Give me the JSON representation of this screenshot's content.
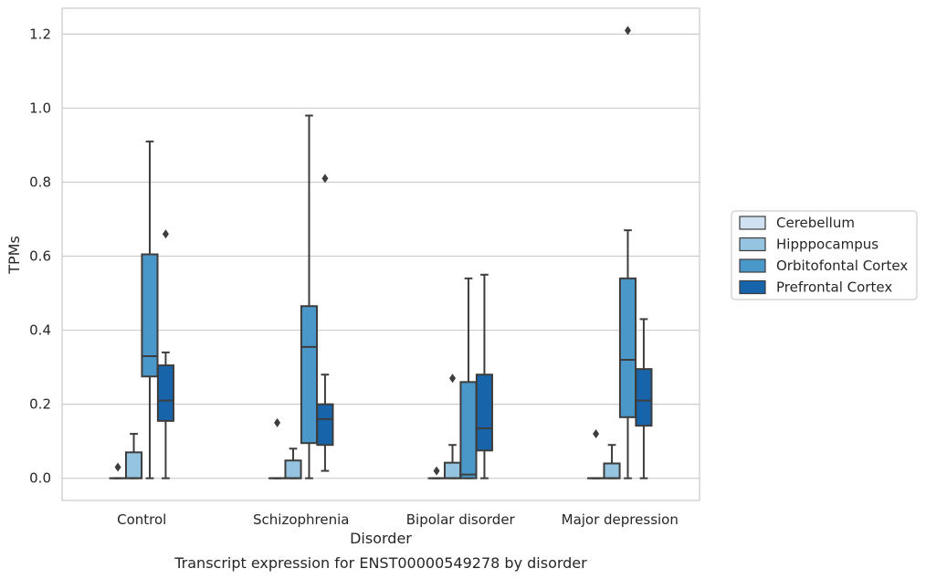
{
  "chart_data": {
    "type": "box",
    "xlabel": "Disorder",
    "ylabel": "TPMs",
    "caption": "Transcript expression for ENST00000549278 by disorder",
    "categories": [
      "Control",
      "Schizophrenia",
      "Bipolar disorder",
      "Major depression"
    ],
    "ylim": [
      -0.06,
      1.27
    ],
    "yticks": [
      "0.0",
      "0.2",
      "0.4",
      "0.6",
      "0.8",
      "1.0",
      "1.2"
    ],
    "grid": "horizontal",
    "legend_position": "right",
    "series": [
      {
        "name": "Cerebellum",
        "color": "#d0e1f2",
        "boxes": [
          {
            "whislo": 0.0,
            "q1": 0.0,
            "median": 0.0,
            "q3": 0.0,
            "whishi": 0.0,
            "fliers": [
              0.03
            ]
          },
          {
            "whislo": 0.0,
            "q1": 0.0,
            "median": 0.0,
            "q3": 0.0,
            "whishi": 0.0,
            "fliers": [
              0.15
            ]
          },
          {
            "whislo": 0.0,
            "q1": 0.0,
            "median": 0.0,
            "q3": 0.0,
            "whishi": 0.0,
            "fliers": [
              0.02
            ]
          },
          {
            "whislo": 0.0,
            "q1": 0.0,
            "median": 0.0,
            "q3": 0.0,
            "whishi": 0.0,
            "fliers": [
              0.12
            ]
          }
        ]
      },
      {
        "name": "Hipppocampus",
        "color": "#94c4df",
        "boxes": [
          {
            "whislo": 0.0,
            "q1": 0.0,
            "median": 0.0,
            "q3": 0.07,
            "whishi": 0.12,
            "fliers": []
          },
          {
            "whislo": 0.0,
            "q1": 0.0,
            "median": 0.0,
            "q3": 0.048,
            "whishi": 0.08,
            "fliers": []
          },
          {
            "whislo": 0.0,
            "q1": 0.0,
            "median": 0.0,
            "q3": 0.042,
            "whishi": 0.09,
            "fliers": [
              0.27
            ]
          },
          {
            "whislo": 0.0,
            "q1": 0.0,
            "median": 0.0,
            "q3": 0.04,
            "whishi": 0.09,
            "fliers": []
          }
        ]
      },
      {
        "name": "Orbitofontal Cortex",
        "color": "#4a98c9",
        "boxes": [
          {
            "whislo": 0.0,
            "q1": 0.275,
            "median": 0.33,
            "q3": 0.605,
            "whishi": 0.91,
            "fliers": []
          },
          {
            "whislo": 0.0,
            "q1": 0.095,
            "median": 0.355,
            "q3": 0.465,
            "whishi": 0.98,
            "fliers": []
          },
          {
            "whislo": 0.0,
            "q1": 0.0,
            "median": 0.01,
            "q3": 0.26,
            "whishi": 0.54,
            "fliers": []
          },
          {
            "whislo": 0.0,
            "q1": 0.165,
            "median": 0.32,
            "q3": 0.54,
            "whishi": 0.67,
            "fliers": [
              1.21
            ]
          }
        ]
      },
      {
        "name": "Prefrontal Cortex",
        "color": "#1764ab",
        "boxes": [
          {
            "whislo": 0.0,
            "q1": 0.155,
            "median": 0.21,
            "q3": 0.305,
            "whishi": 0.34,
            "fliers": [
              0.66
            ]
          },
          {
            "whislo": 0.02,
            "q1": 0.09,
            "median": 0.16,
            "q3": 0.2,
            "whishi": 0.28,
            "fliers": [
              0.81
            ]
          },
          {
            "whislo": 0.0,
            "q1": 0.075,
            "median": 0.135,
            "q3": 0.28,
            "whishi": 0.55,
            "fliers": []
          },
          {
            "whislo": 0.0,
            "q1": 0.142,
            "median": 0.21,
            "q3": 0.295,
            "whishi": 0.43,
            "fliers": []
          }
        ]
      }
    ]
  }
}
